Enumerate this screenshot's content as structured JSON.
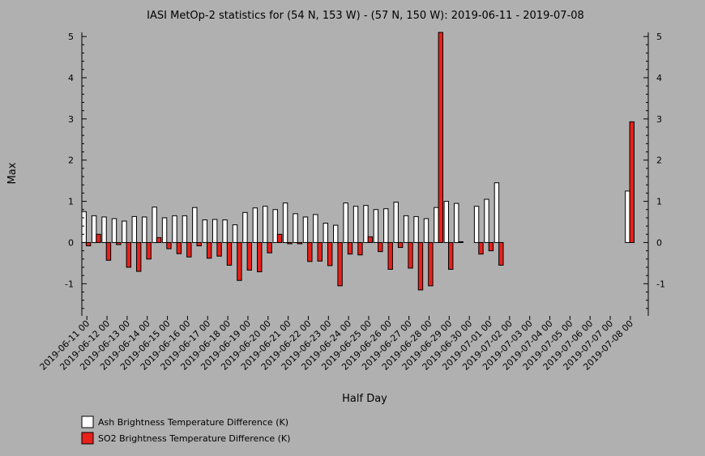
{
  "chart_data": {
    "type": "bar",
    "title": "IASI MetOp-2 statistics for (54 N, 153 W) - (57 N, 150 W): 2019-06-11 - 2019-07-08",
    "xlabel": "Half Day",
    "ylabel": "Max",
    "ylim": [
      -1.78,
      5.1
    ],
    "yticks": [
      -1,
      0,
      1,
      2,
      3,
      4,
      5
    ],
    "grid": false,
    "legend_position": "bottom-left",
    "x_tick_labels": [
      "2019-06-11 00",
      "2019-06-12 00",
      "2019-06-13 00",
      "2019-06-14 00",
      "2019-06-15 00",
      "2019-06-16 00",
      "2019-06-17 00",
      "2019-06-18 00",
      "2019-06-19 00",
      "2019-06-20 00",
      "2019-06-21 00",
      "2019-06-22 00",
      "2019-06-23 00",
      "2019-06-24 00",
      "2019-06-25 00",
      "2019-06-26 00",
      "2019-06-27 00",
      "2019-06-28 00",
      "2019-06-29 00",
      "2019-06-30 00",
      "2019-07-01 00",
      "2019-07-02 00",
      "2019-07-03 00",
      "2019-07-04 00",
      "2019-07-05 00",
      "2019-07-06 00",
      "2019-07-07 00",
      "2019-07-08 00"
    ],
    "x": [
      "2019-06-11 00",
      "2019-06-11 12",
      "2019-06-12 00",
      "2019-06-12 12",
      "2019-06-13 00",
      "2019-06-13 12",
      "2019-06-14 00",
      "2019-06-14 12",
      "2019-06-15 00",
      "2019-06-15 12",
      "2019-06-16 00",
      "2019-06-16 12",
      "2019-06-17 00",
      "2019-06-17 12",
      "2019-06-18 00",
      "2019-06-18 12",
      "2019-06-19 00",
      "2019-06-19 12",
      "2019-06-20 00",
      "2019-06-20 12",
      "2019-06-21 00",
      "2019-06-21 12",
      "2019-06-22 00",
      "2019-06-22 12",
      "2019-06-23 00",
      "2019-06-23 12",
      "2019-06-24 00",
      "2019-06-24 12",
      "2019-06-25 00",
      "2019-06-25 12",
      "2019-06-26 00",
      "2019-06-26 12",
      "2019-06-27 00",
      "2019-06-27 12",
      "2019-06-28 00",
      "2019-06-28 12",
      "2019-06-29 00",
      "2019-06-29 12",
      "2019-06-30 00",
      "2019-06-30 12",
      "2019-07-01 00",
      "2019-07-01 12",
      "2019-07-02 00",
      "2019-07-02 12",
      "2019-07-03 00",
      "2019-07-03 12",
      "2019-07-04 00",
      "2019-07-04 12",
      "2019-07-05 00",
      "2019-07-05 12",
      "2019-07-06 00",
      "2019-07-06 12",
      "2019-07-07 00",
      "2019-07-07 12",
      "2019-07-08 00"
    ],
    "series": [
      {
        "name": "Ash Brightness Temperature Difference (K)",
        "color": "#ffffff",
        "values": [
          0.75,
          0.65,
          0.62,
          0.58,
          0.52,
          0.63,
          0.62,
          0.86,
          0.6,
          0.65,
          0.65,
          0.85,
          0.55,
          0.56,
          0.55,
          0.43,
          0.73,
          0.84,
          0.88,
          0.8,
          0.96,
          0.7,
          0.62,
          0.68,
          0.47,
          0.42,
          0.96,
          0.88,
          0.9,
          0.8,
          0.82,
          0.98,
          0.65,
          0.63,
          0.58,
          0.85,
          1.0,
          0.95,
          null,
          0.88,
          1.05,
          1.45,
          null,
          null,
          null,
          null,
          null,
          null,
          null,
          null,
          null,
          null,
          null,
          null,
          1.25
        ]
      },
      {
        "name": "SO2 Brightness Temperature Difference (K)",
        "color": "#e8211b",
        "values": [
          -0.08,
          0.2,
          -0.43,
          -0.05,
          -0.6,
          -0.7,
          -0.4,
          0.12,
          -0.15,
          -0.27,
          -0.35,
          -0.08,
          -0.38,
          -0.33,
          -0.55,
          -0.92,
          -0.67,
          -0.71,
          -0.25,
          0.2,
          -0.03,
          -0.03,
          -0.46,
          -0.45,
          -0.56,
          -1.05,
          -0.28,
          -0.3,
          0.14,
          -0.22,
          -0.65,
          -0.12,
          -0.62,
          -1.15,
          -1.05,
          5.1,
          -0.65,
          0.02,
          null,
          -0.28,
          -0.2,
          -0.55,
          null,
          null,
          null,
          null,
          null,
          null,
          null,
          null,
          null,
          null,
          null,
          null,
          2.93
        ]
      }
    ]
  }
}
